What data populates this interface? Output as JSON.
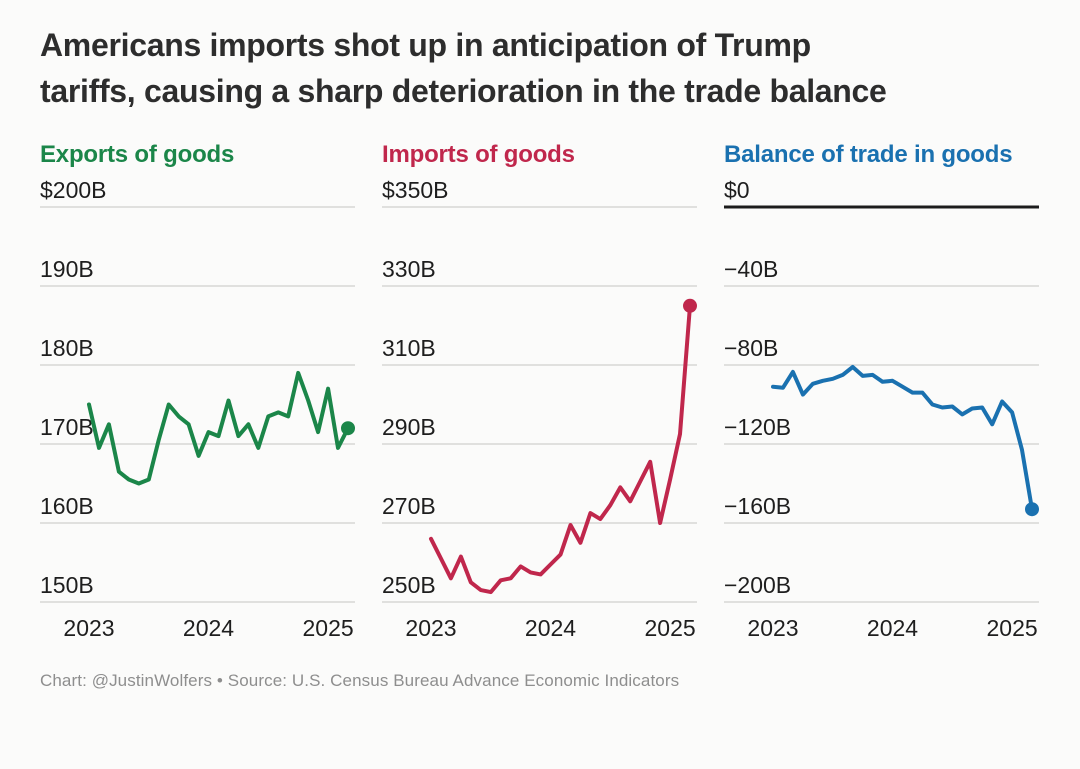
{
  "figure": {
    "title_line1": "Americans imports shot up in anticipation of Trump",
    "title_line2": "tariffs, causing a sharp deterioration in the trade balance",
    "caption": "Chart: @JustinWolfers • Source: U.S. Census Bureau Advance Economic Indicators"
  },
  "colors": {
    "exports": "#1b8649",
    "imports": "#c0274c",
    "balance": "#1a71b0",
    "grid": "#d7d7d4",
    "zero_line": "#1c1c1c",
    "axis_text": "#1e1e1e",
    "title_text": "#2d2d2d",
    "caption_text": "#8e8e8e"
  },
  "chart_data": [
    {
      "type": "line",
      "title": "Exports of goods",
      "color": "#1b8649",
      "unit": "USD billions, monthly",
      "x": [
        "2023-01",
        "2023-02",
        "2023-03",
        "2023-04",
        "2023-05",
        "2023-06",
        "2023-07",
        "2023-08",
        "2023-09",
        "2023-10",
        "2023-11",
        "2023-12",
        "2024-01",
        "2024-02",
        "2024-03",
        "2024-04",
        "2024-05",
        "2024-06",
        "2024-07",
        "2024-08",
        "2024-09",
        "2024-10",
        "2024-11",
        "2024-12",
        "2025-01",
        "2025-02",
        "2025-03"
      ],
      "values": [
        175,
        169.5,
        172.5,
        166.5,
        165.5,
        165,
        165.5,
        170.5,
        175,
        173.5,
        172.5,
        168.5,
        171.5,
        171,
        175.5,
        171,
        172.5,
        169.5,
        173.5,
        174,
        173.5,
        179,
        175.5,
        171.5,
        177,
        169.5,
        172
      ],
      "ylim": [
        150,
        200
      ],
      "y_ticks": [
        {
          "value": 200,
          "label": "$200B"
        },
        {
          "value": 190,
          "label": "190B"
        },
        {
          "value": 180,
          "label": "180B"
        },
        {
          "value": 170,
          "label": "170B"
        },
        {
          "value": 160,
          "label": "160B"
        },
        {
          "value": 150,
          "label": "150B"
        }
      ],
      "x_ticks": [
        {
          "month_index": 0,
          "label": "2023"
        },
        {
          "month_index": 12,
          "label": "2024"
        },
        {
          "month_index": 24,
          "label": "2025"
        }
      ],
      "grid": true,
      "end_dot": true,
      "zero_line_top": false,
      "legend_position": "none"
    },
    {
      "type": "line",
      "title": "Imports of goods",
      "color": "#c0274c",
      "unit": "USD billions, monthly",
      "x": [
        "2023-01",
        "2023-02",
        "2023-03",
        "2023-04",
        "2023-05",
        "2023-06",
        "2023-07",
        "2023-08",
        "2023-09",
        "2023-10",
        "2023-11",
        "2023-12",
        "2024-01",
        "2024-02",
        "2024-03",
        "2024-04",
        "2024-05",
        "2024-06",
        "2024-07",
        "2024-08",
        "2024-09",
        "2024-10",
        "2024-11",
        "2024-12",
        "2025-01",
        "2025-02",
        "2025-03"
      ],
      "values": [
        266,
        261,
        256,
        261.5,
        255,
        253,
        252.5,
        255.5,
        256,
        259,
        257.5,
        257,
        259.5,
        262,
        269.5,
        265,
        272.5,
        271,
        274.5,
        279,
        275.5,
        280.5,
        285.5,
        270,
        281,
        292.5,
        325
      ],
      "ylim": [
        250,
        350
      ],
      "y_ticks": [
        {
          "value": 350,
          "label": "$350B"
        },
        {
          "value": 330,
          "label": "330B"
        },
        {
          "value": 310,
          "label": "310B"
        },
        {
          "value": 290,
          "label": "290B"
        },
        {
          "value": 270,
          "label": "270B"
        },
        {
          "value": 250,
          "label": "250B"
        }
      ],
      "x_ticks": [
        {
          "month_index": 0,
          "label": "2023"
        },
        {
          "month_index": 12,
          "label": "2024"
        },
        {
          "month_index": 24,
          "label": "2025"
        }
      ],
      "grid": true,
      "end_dot": true,
      "zero_line_top": false,
      "legend_position": "none"
    },
    {
      "type": "line",
      "title": "Balance of trade in goods",
      "color": "#1a71b0",
      "unit": "USD billions, monthly",
      "x": [
        "2023-01",
        "2023-02",
        "2023-03",
        "2023-04",
        "2023-05",
        "2023-06",
        "2023-07",
        "2023-08",
        "2023-09",
        "2023-10",
        "2023-11",
        "2023-12",
        "2024-01",
        "2024-02",
        "2024-03",
        "2024-04",
        "2024-05",
        "2024-06",
        "2024-07",
        "2024-08",
        "2024-09",
        "2024-10",
        "2024-11",
        "2024-12",
        "2025-01",
        "2025-02",
        "2025-03"
      ],
      "values": [
        -91,
        -91.5,
        -83.5,
        -95,
        -89.5,
        -88,
        -87,
        -85,
        -81,
        -85.5,
        -85,
        -88.5,
        -88,
        -91,
        -94,
        -94,
        -100,
        -101.5,
        -101,
        -105,
        -102,
        -101.5,
        -110,
        -98.5,
        -104,
        -123,
        -153
      ],
      "ylim": [
        -200,
        0
      ],
      "y_ticks": [
        {
          "value": 0,
          "label": "$0"
        },
        {
          "value": -40,
          "label": "−40B"
        },
        {
          "value": -80,
          "label": "−80B"
        },
        {
          "value": -120,
          "label": "−120B"
        },
        {
          "value": -160,
          "label": "−160B"
        },
        {
          "value": -200,
          "label": "−200B"
        }
      ],
      "x_ticks": [
        {
          "month_index": 0,
          "label": "2023"
        },
        {
          "month_index": 12,
          "label": "2024"
        },
        {
          "month_index": 24,
          "label": "2025"
        }
      ],
      "grid": true,
      "end_dot": true,
      "zero_line_top": true,
      "legend_position": "none"
    }
  ]
}
